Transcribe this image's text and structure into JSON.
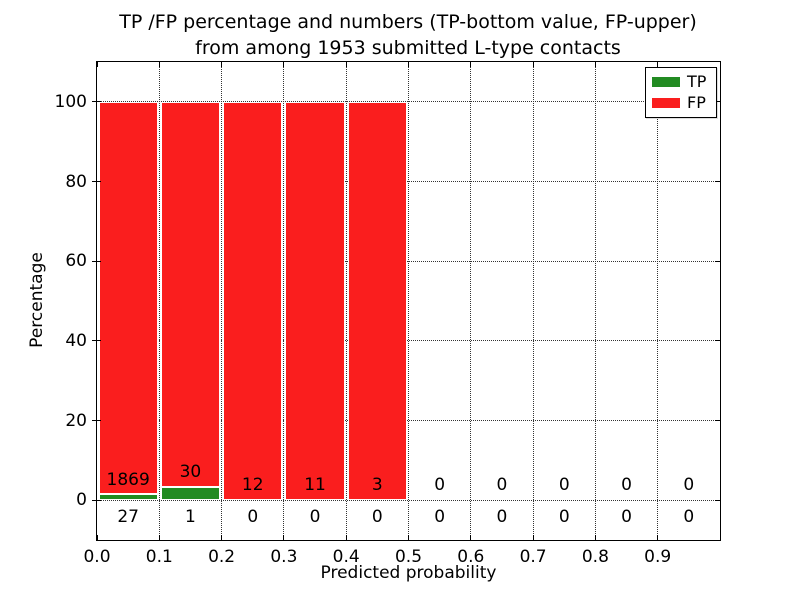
{
  "figure": {
    "title_line1": "TP /FP percentage and numbers (TP-bottom value, FP-upper)",
    "title_line2": "from among 1953 submitted L-type contacts"
  },
  "chart_data": {
    "type": "bar",
    "stacked": true,
    "title": "TP /FP percentage and numbers (TP-bottom value, FP-upper) from among 1953 submitted L-type contacts",
    "xlabel": "Predicted probability",
    "ylabel": "Percentage",
    "xlim": [
      0.0,
      1.0
    ],
    "ylim": [
      -10,
      110
    ],
    "xticks": [
      "0.0",
      "0.1",
      "0.2",
      "0.3",
      "0.4",
      "0.5",
      "0.6",
      "0.7",
      "0.8",
      "0.9"
    ],
    "yticks": [
      0,
      20,
      40,
      60,
      80,
      100
    ],
    "bin_width": 0.1,
    "grid": {
      "visible": true,
      "style": "dotted",
      "axes": "both"
    },
    "categories": [
      "0.0-0.1",
      "0.1-0.2",
      "0.2-0.3",
      "0.3-0.4",
      "0.4-0.5",
      "0.5-0.6",
      "0.6-0.7",
      "0.7-0.8",
      "0.8-0.9",
      "0.9-1.0"
    ],
    "series": [
      {
        "name": "TP",
        "color": "#228b22",
        "counts": [
          27,
          1,
          0,
          0,
          0,
          0,
          0,
          0,
          0,
          0
        ],
        "pct_of_bin": [
          1.4,
          3.2,
          0,
          0,
          0,
          0,
          0,
          0,
          0,
          0
        ]
      },
      {
        "name": "FP",
        "color": "#fa1e1e",
        "counts": [
          1869,
          30,
          12,
          11,
          3,
          0,
          0,
          0,
          0,
          0
        ],
        "pct_of_bin": [
          98.6,
          96.8,
          100,
          100,
          100,
          0,
          0,
          0,
          0,
          0
        ]
      }
    ],
    "legend": {
      "position": "upper right",
      "entries": [
        {
          "label": "TP",
          "color": "#228b22"
        },
        {
          "label": "FP",
          "color": "#fa1e1e"
        }
      ]
    },
    "total_submitted": 1953,
    "note": "Bars stack TP% (bottom, green) + FP% (upper, red) to 100% per bin; printed numbers are raw counts (TP below axis, FP above)."
  }
}
